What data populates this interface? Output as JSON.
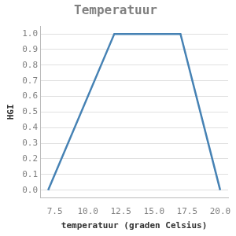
{
  "chart_data": {
    "type": "line",
    "title": "Temperatuur",
    "x_label": "temperatuur (graden Celsius)",
    "y_label": "HGI",
    "x": [
      7,
      12,
      17,
      20
    ],
    "values": [
      0,
      1,
      1,
      0
    ],
    "color": "#4682b4",
    "xlim": [
      6.4,
      20.6
    ],
    "xticks": [
      {
        "value": 7.5,
        "label": "7.5"
      },
      {
        "value": 10,
        "label": "10.0"
      },
      {
        "value": 12.5,
        "label": "12.5"
      },
      {
        "value": 15,
        "label": "15.0"
      },
      {
        "value": 17.5,
        "label": "17.5"
      },
      {
        "value": 20,
        "label": "20.0"
      }
    ],
    "ylim": [
      -0.05,
      1.05
    ],
    "yticks": [
      {
        "value": 0,
        "label": "0.0"
      },
      {
        "value": 0.1,
        "label": "0.1"
      },
      {
        "value": 0.2,
        "label": "0.2"
      },
      {
        "value": 0.3,
        "label": "0.3"
      },
      {
        "value": 0.4,
        "label": "0.4"
      },
      {
        "value": 0.5,
        "label": "0.5"
      },
      {
        "value": 0.6,
        "label": "0.6"
      },
      {
        "value": 0.7,
        "label": "0.7"
      },
      {
        "value": 0.8,
        "label": "0.8"
      },
      {
        "value": 0.9,
        "label": "0.9"
      },
      {
        "value": 1,
        "label": "1.0"
      }
    ],
    "grid": true
  }
}
